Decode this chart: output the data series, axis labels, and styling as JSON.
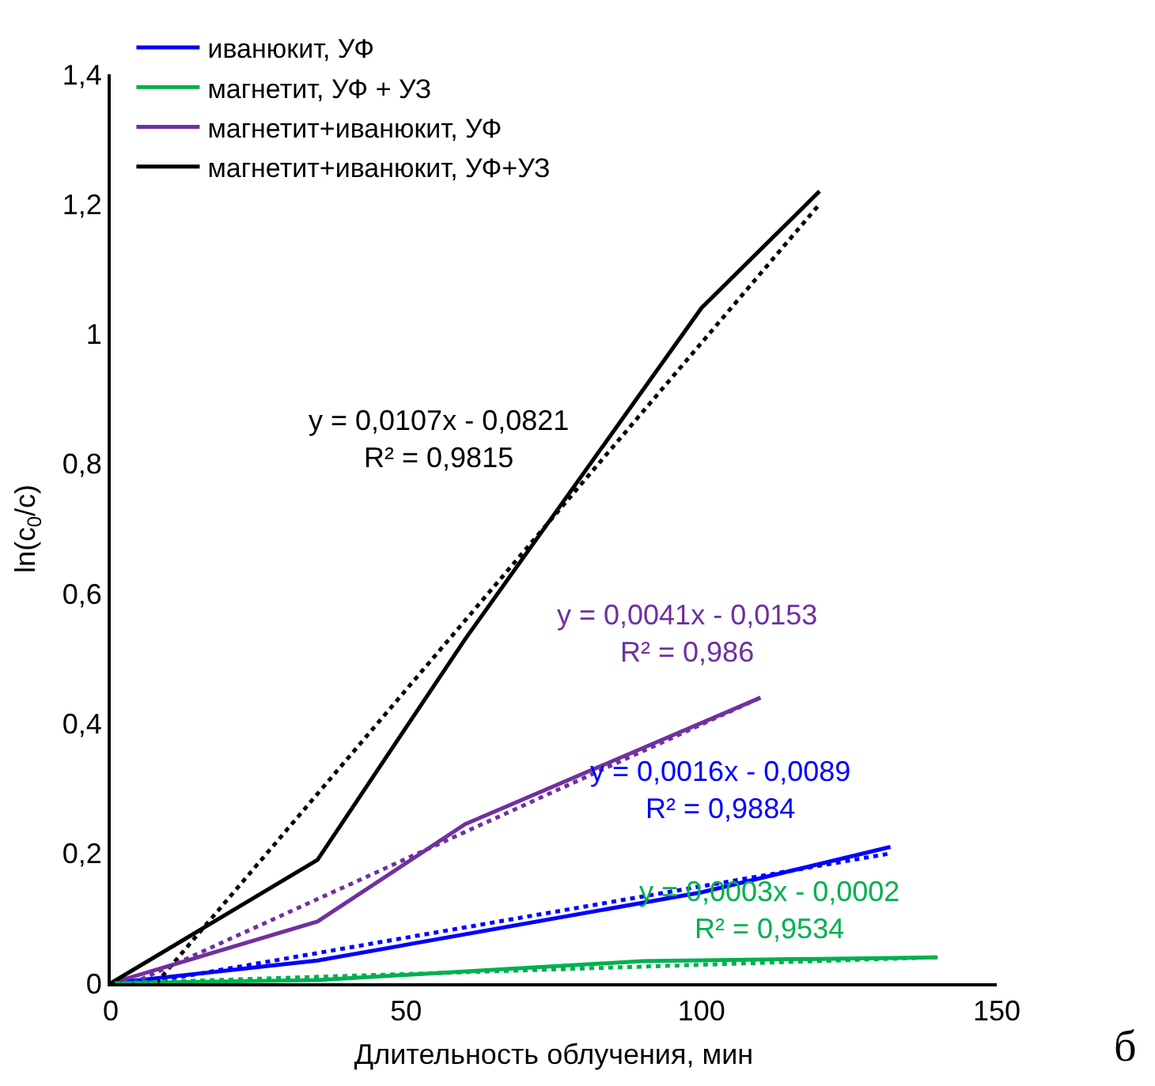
{
  "chart_data": {
    "type": "line",
    "xlabel": "Длительность облучения, мин",
    "ylabel": "ln(c$_{0}$/c)",
    "xlim": [
      0,
      150
    ],
    "xticks": [
      0,
      50,
      100,
      150
    ],
    "ylim": [
      0,
      1.4
    ],
    "yticks": [
      0,
      {
        "value": 0.2,
        "label": "0,2"
      },
      {
        "value": 0.4,
        "label": "0,4"
      },
      {
        "value": 0.6,
        "label": "0,6"
      },
      {
        "value": 0.8,
        "label": "0,8"
      },
      {
        "value": 1,
        "label": "1"
      },
      {
        "value": 1.2,
        "label": "1,2"
      },
      {
        "value": 1.4,
        "label": "1,4"
      }
    ],
    "grid": false,
    "legend": "top left",
    "marker": "none",
    "line_style": "solid",
    "series": [
      {
        "name": "иванюкит, УФ",
        "color": "#0000ff",
        "x": [
          0,
          35,
          100,
          132
        ],
        "values": [
          0,
          0.035,
          0.14,
          0.21
        ]
      },
      {
        "name": "магнетит, УФ + УЗ",
        "color": "#00b050",
        "x": [
          0,
          35,
          90,
          140
        ],
        "values": [
          0,
          0.005,
          0.034,
          0.04
        ]
      },
      {
        "name": "магнетит+иванюкит, УФ",
        "color": "#7030a0",
        "x": [
          0,
          35,
          60,
          110
        ],
        "values": [
          0,
          0.095,
          0.245,
          0.44
        ]
      },
      {
        "name": "магнетит+иванюкит, УФ+УЗ",
        "color": "#000000",
        "x": [
          0,
          35,
          60,
          100,
          120
        ],
        "values": [
          0,
          0.19,
          0.53,
          1.04,
          1.22
        ]
      },
      {
        "color": "#000000",
        "line_style": "dotted",
        "x": [
          7.7,
          120
        ],
        "values": [
          0,
          1.2
        ]
      },
      {
        "color": "#7030a0",
        "line_style": "dotted",
        "x": [
          3.7,
          110
        ],
        "values": [
          0,
          0.44
        ]
      },
      {
        "color": "#0000ff",
        "line_style": "dotted",
        "x": [
          5.6,
          132
        ],
        "values": [
          0,
          0.2
        ]
      },
      {
        "color": "#00b050",
        "line_style": "dotted",
        "x": [
          0.7,
          140
        ],
        "values": [
          0,
          0.04
        ]
      }
    ],
    "annotations": [
      "y = 0,0107x - 0,0821\nR² = 0,9815",
      "y = 0,0041x - 0,0153\nR² = 0,986",
      "y = 0,0016x - 0,0089\nR² = 0,9884",
      "y = 0,0003x - 0,0002\nR² = 0,9534",
      "б"
    ]
  }
}
